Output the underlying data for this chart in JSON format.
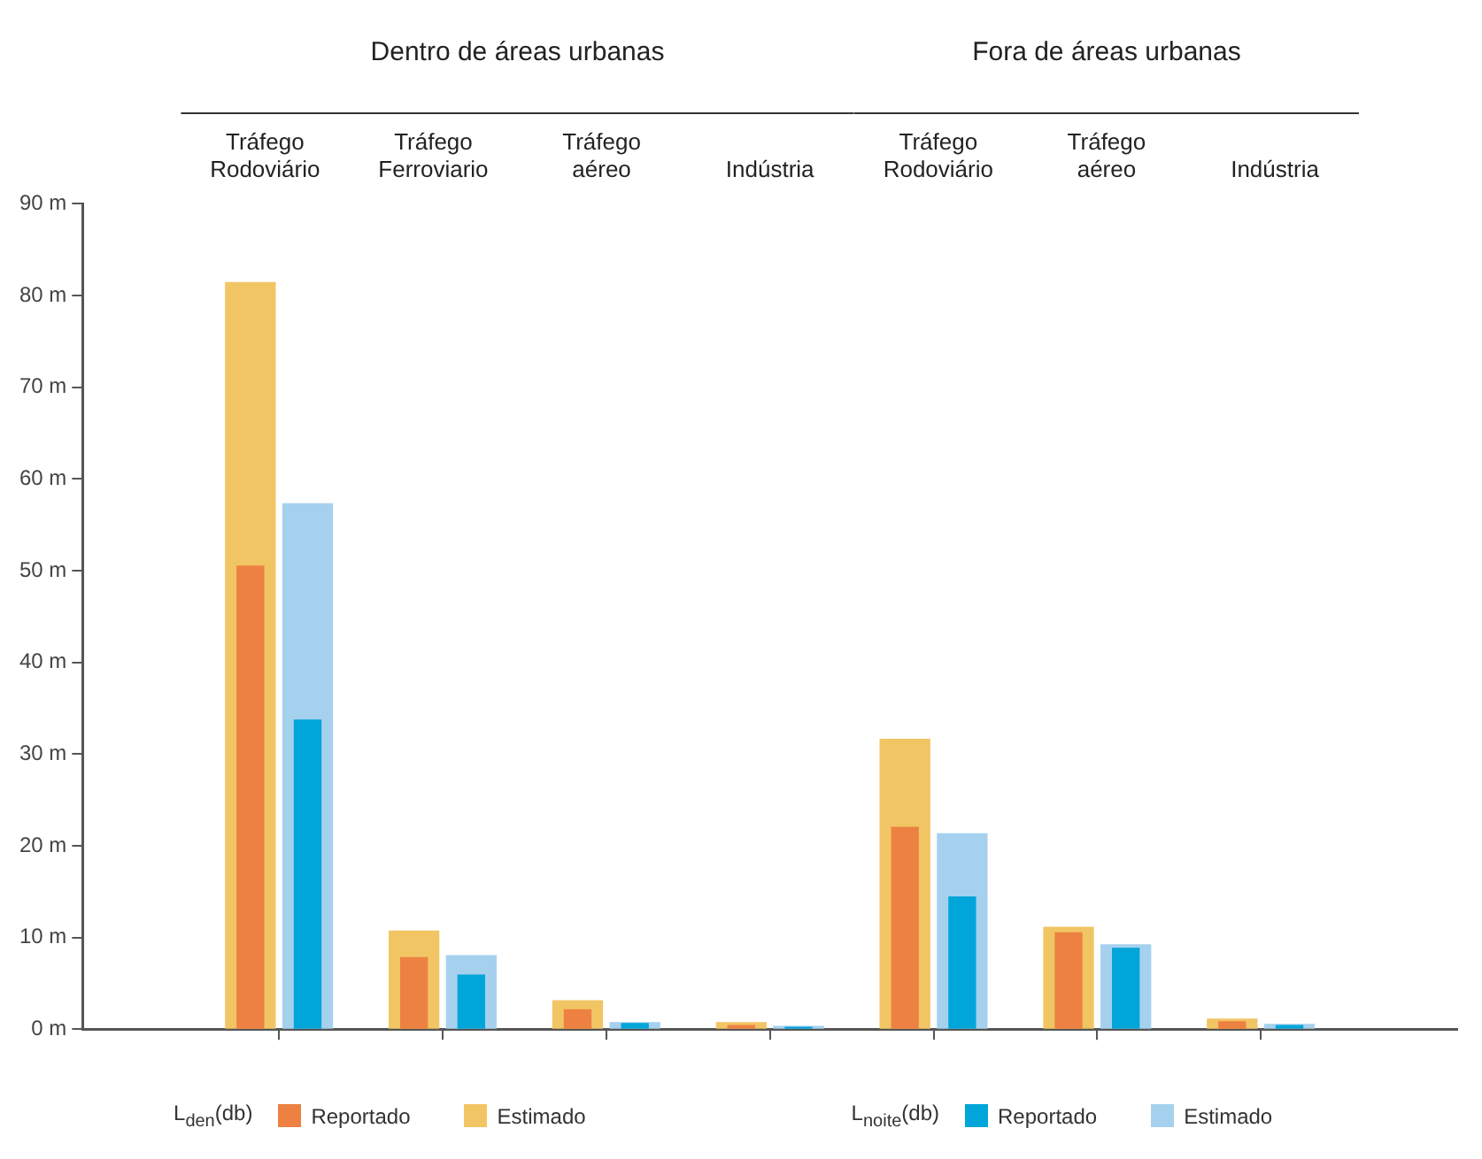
{
  "chart_data": {
    "type": "bar",
    "categories": [
      "Tráfego Rodoviário",
      "Tráfego Ferroviario",
      "Tráfego aéreo",
      "Indústria",
      "Tráfego Rodoviário",
      "Tráfego aéreo",
      "Indústria"
    ],
    "series": [
      {
        "name": "Reportado",
        "color": "#ec8142",
        "values": [
          50.5,
          7.8,
          2.1,
          0.4,
          22.0,
          10.5,
          0.8
        ]
      },
      {
        "name": "Estimado",
        "color": "#f2c564",
        "values": [
          81.4,
          10.7,
          3.1,
          0.7,
          31.6,
          11.1,
          1.1
        ]
      },
      {
        "name": "Reportado",
        "color": "#00a5d9",
        "values": [
          33.7,
          5.9,
          0.6,
          0.2,
          14.4,
          8.8,
          0.4
        ]
      },
      {
        "name": "Estimado",
        "color": "#a6d1ee",
        "values": [
          57.3,
          8.0,
          0.7,
          0.3,
          21.3,
          9.2,
          0.5
        ]
      }
    ],
    "ylim": [
      0,
      90
    ],
    "yticks": [
      {
        "value": 0,
        "label": "0 m"
      },
      {
        "value": 10,
        "label": "10 m"
      },
      {
        "value": 20,
        "label": "20 m"
      },
      {
        "value": 30,
        "label": "30 m"
      },
      {
        "value": 40,
        "label": "40 m"
      },
      {
        "value": 50,
        "label": "50 m"
      },
      {
        "value": 60,
        "label": "60 m"
      },
      {
        "value": 70,
        "label": "70 m"
      },
      {
        "value": 80,
        "label": "80 m"
      },
      {
        "value": 90,
        "label": "90 m"
      }
    ],
    "annotations": [
      "Dentro de áreas urbanas",
      "Fora de áreas urbanas",
      "L$_{den}$(db)",
      "L$_{noite}$(db)"
    ],
    "grid": false,
    "legend": "bottom"
  }
}
